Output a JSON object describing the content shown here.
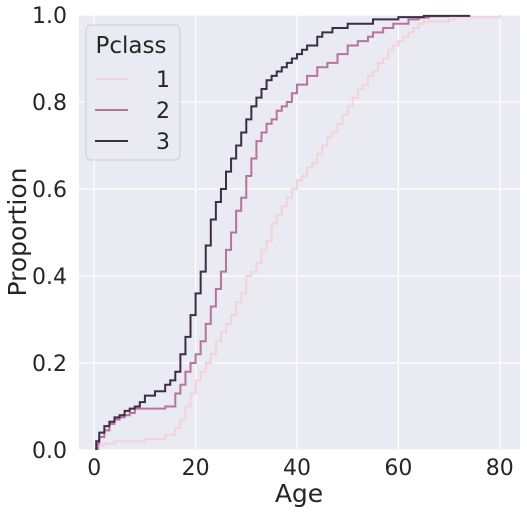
{
  "chart_data": {
    "type": "line",
    "title": "",
    "xlabel": "Age",
    "ylabel": "Proportion",
    "xlim": [
      -3,
      84
    ],
    "ylim": [
      0,
      1.0
    ],
    "xticks": [
      0,
      20,
      40,
      60,
      80
    ],
    "yticks": [
      0.0,
      0.2,
      0.4,
      0.6,
      0.8,
      1.0
    ],
    "xtick_labels": [
      "0",
      "20",
      "40",
      "60",
      "80"
    ],
    "ytick_labels": [
      "0.0",
      "0.2",
      "0.4",
      "0.6",
      "0.8",
      "1.0"
    ],
    "grid": true,
    "background": "#eaeaf2",
    "legend": {
      "title": "Pclass",
      "position": "top-left"
    },
    "series": [
      {
        "name": "1",
        "color": "#f1d3d9",
        "x": [
          0.9,
          2,
          4,
          10,
          14,
          16,
          17,
          18,
          19,
          20,
          21,
          22,
          23,
          24,
          25,
          26,
          27,
          28,
          29,
          30,
          31,
          32,
          33,
          34,
          35,
          36,
          37,
          38,
          39,
          40,
          41,
          42,
          43,
          44,
          45,
          46,
          47,
          48,
          49,
          50,
          51,
          52,
          53,
          54,
          55,
          56,
          57,
          58,
          59,
          60,
          61,
          62,
          63,
          64,
          65,
          70,
          71,
          80
        ],
        "y": [
          0.01,
          0.015,
          0.02,
          0.025,
          0.035,
          0.05,
          0.07,
          0.1,
          0.13,
          0.16,
          0.18,
          0.2,
          0.22,
          0.25,
          0.27,
          0.29,
          0.31,
          0.34,
          0.36,
          0.4,
          0.41,
          0.43,
          0.46,
          0.48,
          0.52,
          0.54,
          0.56,
          0.58,
          0.6,
          0.62,
          0.63,
          0.65,
          0.66,
          0.68,
          0.7,
          0.72,
          0.73,
          0.75,
          0.77,
          0.79,
          0.81,
          0.83,
          0.84,
          0.86,
          0.87,
          0.89,
          0.9,
          0.92,
          0.93,
          0.94,
          0.95,
          0.96,
          0.97,
          0.98,
          0.985,
          0.99,
          0.995,
          1.0
        ]
      },
      {
        "name": "2",
        "color": "#b5739d",
        "x": [
          0.7,
          1,
          2,
          3,
          4,
          5,
          6,
          7,
          8,
          14,
          16,
          17,
          18,
          19,
          20,
          21,
          22,
          23,
          24,
          25,
          26,
          27,
          28,
          29,
          30,
          31,
          32,
          33,
          34,
          35,
          36,
          37,
          38,
          39,
          40,
          42,
          44,
          46,
          48,
          50,
          52,
          54,
          55,
          57,
          59,
          62,
          64,
          66,
          70
        ],
        "y": [
          0.015,
          0.03,
          0.045,
          0.06,
          0.07,
          0.075,
          0.08,
          0.085,
          0.095,
          0.1,
          0.13,
          0.15,
          0.18,
          0.2,
          0.22,
          0.25,
          0.29,
          0.33,
          0.37,
          0.41,
          0.46,
          0.5,
          0.55,
          0.58,
          0.63,
          0.67,
          0.71,
          0.73,
          0.75,
          0.76,
          0.78,
          0.79,
          0.8,
          0.82,
          0.84,
          0.86,
          0.88,
          0.89,
          0.91,
          0.93,
          0.94,
          0.95,
          0.96,
          0.97,
          0.98,
          0.99,
          0.994,
          0.997,
          1.0
        ]
      },
      {
        "name": "3",
        "color": "#3e2c47",
        "x": [
          0.4,
          1,
          2,
          3,
          4,
          5,
          6,
          7,
          8,
          9,
          10,
          12,
          14,
          15,
          16,
          17,
          18,
          19,
          20,
          21,
          22,
          23,
          24,
          25,
          26,
          27,
          28,
          29,
          30,
          31,
          32,
          33,
          34,
          35,
          36,
          37,
          38,
          39,
          40,
          41,
          42,
          44,
          45,
          47,
          50,
          55,
          60,
          65,
          74
        ],
        "y": [
          0.02,
          0.04,
          0.055,
          0.065,
          0.075,
          0.08,
          0.09,
          0.095,
          0.1,
          0.11,
          0.125,
          0.135,
          0.15,
          0.16,
          0.18,
          0.22,
          0.26,
          0.31,
          0.36,
          0.41,
          0.47,
          0.53,
          0.57,
          0.6,
          0.64,
          0.67,
          0.7,
          0.73,
          0.76,
          0.79,
          0.81,
          0.83,
          0.85,
          0.86,
          0.87,
          0.88,
          0.89,
          0.9,
          0.91,
          0.92,
          0.93,
          0.95,
          0.96,
          0.97,
          0.98,
          0.99,
          0.995,
          0.998,
          1.0
        ]
      }
    ]
  }
}
